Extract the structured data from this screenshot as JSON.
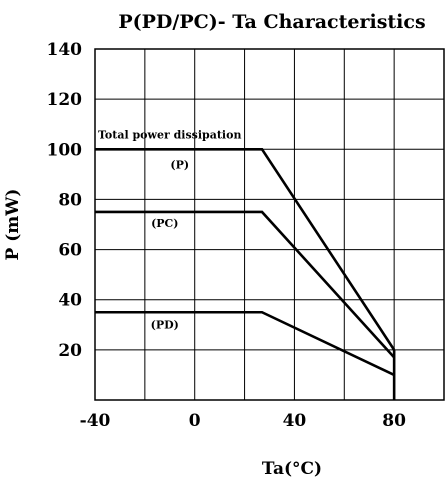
{
  "chart_data": {
    "type": "line",
    "title": "P(PD/PC)- Ta Characteristics",
    "xlabel": "Ta(°C)",
    "ylabel": "P (mW)",
    "xlim": [
      -40,
      100
    ],
    "ylim": [
      0,
      140
    ],
    "x_ticks": [
      -40,
      0,
      40,
      80
    ],
    "y_ticks": [
      20,
      40,
      60,
      80,
      100,
      120,
      140
    ],
    "x_grid_step": 20,
    "y_grid_step": 20,
    "grid": true,
    "series": [
      {
        "name": "(P)",
        "points": [
          [
            -40,
            100
          ],
          [
            27,
            100
          ],
          [
            80,
            20
          ]
        ]
      },
      {
        "name": "(PC)",
        "points": [
          [
            -40,
            75
          ],
          [
            27,
            75
          ],
          [
            80,
            17
          ]
        ]
      },
      {
        "name": "(PD)",
        "points": [
          [
            -40,
            35
          ],
          [
            27,
            35
          ],
          [
            80,
            10
          ]
        ]
      }
    ],
    "annotations": {
      "total": "Total power dissipation",
      "p": "(P)",
      "pc": "(PC)",
      "pd": "(PD)"
    }
  }
}
